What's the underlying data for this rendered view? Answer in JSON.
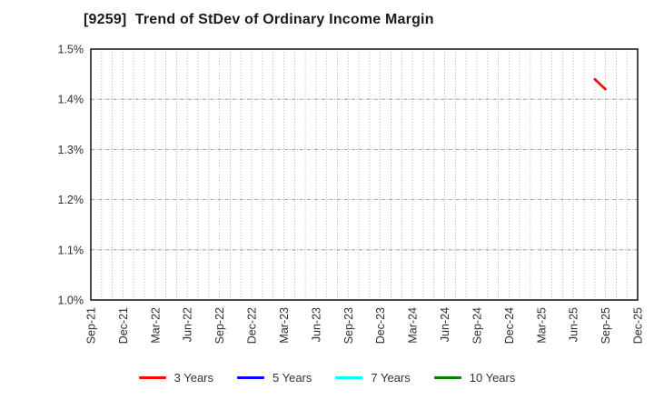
{
  "title": "[9259]  Trend of StDev of Ordinary Income Margin",
  "colors": {
    "background": "#ffffff",
    "plot_border": "#1f1f1f",
    "grid_vertical": "#9e9e9e",
    "grid_horizontal": "#8c8c8c",
    "tick_label": "#2e2e2e",
    "title_text": "#1a1a1a",
    "legend_text": "#333333",
    "series_3y": "#ff0000",
    "series_5y": "#0000ff",
    "series_7y": "#00ffff",
    "series_10y": "#008000"
  },
  "chart_data": {
    "type": "line",
    "title": "[9259]  Trend of StDev of Ordinary Income Margin",
    "xlabel": "",
    "ylabel": "",
    "ylim": [
      1.0,
      1.5
    ],
    "y_ticks": [
      {
        "value": 1.0,
        "label": "1.0%"
      },
      {
        "value": 1.1,
        "label": "1.1%"
      },
      {
        "value": 1.2,
        "label": "1.2%"
      },
      {
        "value": 1.3,
        "label": "1.3%"
      },
      {
        "value": 1.4,
        "label": "1.4%"
      },
      {
        "value": 1.5,
        "label": "1.5%"
      }
    ],
    "x_tick_labels": [
      "Sep-21",
      "Dec-21",
      "Mar-22",
      "Jun-22",
      "Sep-22",
      "Dec-22",
      "Mar-23",
      "Jun-23",
      "Sep-23",
      "Dec-23",
      "Mar-24",
      "Jun-24",
      "Sep-24",
      "Dec-24",
      "Mar-25",
      "Jun-25",
      "Sep-25",
      "Dec-25"
    ],
    "x_months_per_tick": 3,
    "x_months_total": 51,
    "grid": {
      "vertical": "monthly dotted",
      "horizontal": "dash-dot at each 0.1%",
      "visible": true
    },
    "legend_position": "bottom-center",
    "series": [
      {
        "name": "3 Years",
        "color": "#ff0000",
        "points": [
          {
            "x_label": "Aug-25",
            "x_month": 47,
            "value": 1.44
          },
          {
            "x_label": "Sep-25",
            "x_month": 48,
            "value": 1.42
          }
        ]
      },
      {
        "name": "5 Years",
        "color": "#0000ff",
        "points": []
      },
      {
        "name": "7 Years",
        "color": "#00ffff",
        "points": []
      },
      {
        "name": "10 Years",
        "color": "#008000",
        "points": []
      }
    ]
  }
}
